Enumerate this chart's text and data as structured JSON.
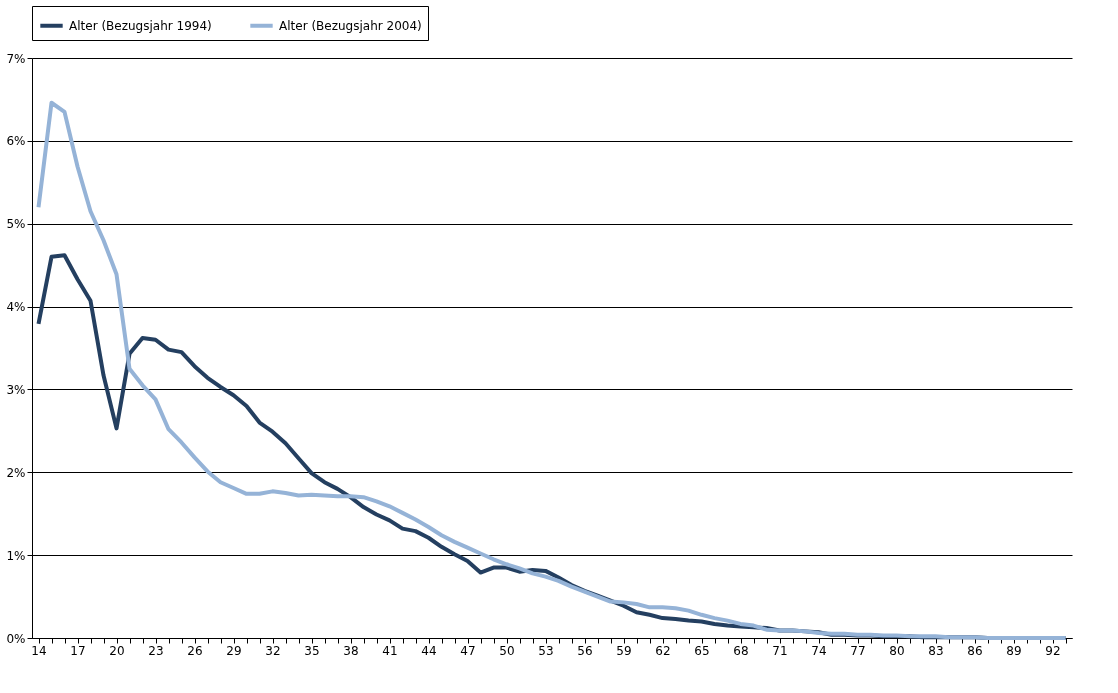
{
  "chart_data": {
    "type": "line",
    "categories": [
      "14",
      null,
      null,
      "17",
      null,
      null,
      "20",
      null,
      null,
      "23",
      null,
      null,
      "26",
      null,
      null,
      "29",
      null,
      null,
      "32",
      null,
      null,
      "35",
      null,
      null,
      "38",
      null,
      null,
      "41",
      null,
      null,
      "44",
      null,
      null,
      "47",
      null,
      null,
      "50",
      null,
      null,
      "53",
      null,
      null,
      "56",
      null,
      null,
      "59",
      null,
      null,
      "62",
      null,
      null,
      "65",
      null,
      null,
      "68",
      null,
      null,
      "71",
      null,
      null,
      "74",
      null,
      null,
      "77",
      null,
      null,
      "80",
      null,
      null,
      "83",
      null,
      null,
      "86",
      null,
      null,
      "89",
      null,
      null,
      "92",
      null
    ],
    "series": [
      {
        "name": "Alter (Bezugsjahr 1994)",
        "color": "#243f60",
        "values": [
          3.79,
          4.6,
          4.62,
          4.33,
          4.07,
          3.17,
          2.53,
          3.43,
          3.62,
          3.6,
          3.48,
          3.45,
          3.28,
          3.14,
          3.03,
          2.93,
          2.8,
          2.6,
          2.49,
          2.35,
          2.17,
          1.99,
          1.88,
          1.8,
          1.7,
          1.58,
          1.49,
          1.42,
          1.32,
          1.29,
          1.21,
          1.1,
          1.01,
          0.93,
          0.79,
          0.85,
          0.85,
          0.8,
          0.82,
          0.81,
          0.73,
          0.64,
          0.57,
          0.51,
          0.45,
          0.39,
          0.31,
          0.28,
          0.24,
          0.23,
          0.21,
          0.2,
          0.17,
          0.15,
          0.14,
          0.13,
          0.12,
          0.09,
          0.09,
          0.08,
          0.07,
          0.04,
          0.04,
          0.03,
          0.03,
          0.02,
          0.02,
          0.02,
          0.01,
          0.01,
          0.01,
          0.01,
          0.01,
          0,
          0,
          0,
          0,
          0,
          0,
          0
        ]
      },
      {
        "name": "Alter (Bezugsjahr 2004)",
        "color": "#95b3d7",
        "values": [
          5.2,
          6.46,
          6.35,
          5.69,
          5.15,
          4.8,
          4.39,
          3.25,
          3.05,
          2.88,
          2.52,
          2.36,
          2.18,
          2.01,
          1.88,
          1.81,
          1.74,
          1.74,
          1.77,
          1.75,
          1.72,
          1.73,
          1.72,
          1.71,
          1.71,
          1.7,
          1.65,
          1.59,
          1.51,
          1.43,
          1.34,
          1.24,
          1.16,
          1.09,
          1.02,
          0.95,
          0.89,
          0.84,
          0.78,
          0.74,
          0.69,
          0.62,
          0.56,
          0.5,
          0.44,
          0.43,
          0.41,
          0.37,
          0.37,
          0.36,
          0.33,
          0.28,
          0.24,
          0.21,
          0.17,
          0.15,
          0.1,
          0.09,
          0.09,
          0.08,
          0.06,
          0.05,
          0.05,
          0.04,
          0.04,
          0.03,
          0.03,
          0.02,
          0.02,
          0.02,
          0.01,
          0.01,
          0.01,
          0,
          0,
          0,
          0,
          0,
          0,
          0
        ]
      }
    ],
    "ylim": [
      0,
      7
    ],
    "yticks": [
      {
        "value": 0,
        "label": "0%"
      },
      {
        "value": 1,
        "label": "1%"
      },
      {
        "value": 2,
        "label": "2%"
      },
      {
        "value": 3,
        "label": "3%"
      },
      {
        "value": 4,
        "label": "4%"
      },
      {
        "value": 5,
        "label": "5%"
      },
      {
        "value": 6,
        "label": "6%"
      },
      {
        "value": 7,
        "label": "7%"
      }
    ],
    "grid": "y",
    "legend": "top",
    "marker": "none",
    "line_style": "solid"
  }
}
